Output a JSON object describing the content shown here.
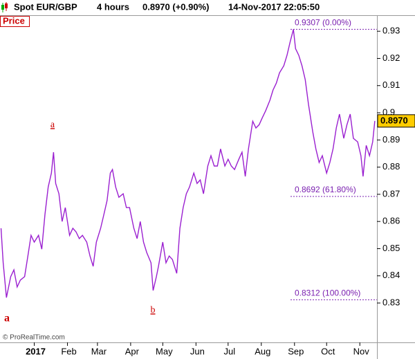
{
  "header": {
    "symbol": "Spot EUR/GBP",
    "period": "4 hours",
    "quote": "0.8970 (+0.90%)",
    "timestamp": "14-Nov-2017 22:05:50"
  },
  "chart_data": {
    "type": "line",
    "panel_label": "Price",
    "color": "#9a1fd0",
    "x": [
      -30,
      -28,
      -25,
      -21,
      -18,
      -15,
      -12,
      -8,
      -5,
      -2,
      1,
      5,
      8,
      11,
      14,
      17,
      19,
      21,
      24,
      27,
      30,
      34,
      37,
      40,
      43,
      46,
      50,
      53,
      56,
      59,
      63,
      66,
      69,
      72,
      74,
      77,
      80,
      84,
      87,
      90,
      94,
      97,
      100,
      103,
      106,
      110,
      112,
      115,
      117,
      121,
      124,
      127,
      130,
      134,
      137,
      140,
      143,
      146,
      150,
      153,
      156,
      159,
      163,
      166,
      169,
      172,
      175,
      179,
      182,
      185,
      188,
      192,
      195,
      198,
      201,
      205,
      208,
      211,
      214,
      217,
      221,
      224,
      227,
      230,
      234,
      237,
      240,
      243,
      245,
      248,
      251,
      254,
      257,
      261,
      264,
      267,
      270,
      274,
      277,
      280,
      283,
      286,
      290,
      293,
      296,
      299,
      303,
      306,
      308,
      311,
      314,
      317,
      319
    ],
    "values": [
      0.8575,
      0.8448,
      0.832,
      0.8397,
      0.8422,
      0.8359,
      0.8384,
      0.8397,
      0.8473,
      0.8549,
      0.8524,
      0.8549,
      0.8498,
      0.8626,
      0.8727,
      0.8778,
      0.8855,
      0.874,
      0.8702,
      0.86,
      0.8651,
      0.8549,
      0.8575,
      0.8562,
      0.8537,
      0.8549,
      0.8524,
      0.8473,
      0.8435,
      0.8524,
      0.8575,
      0.8626,
      0.8677,
      0.8778,
      0.8791,
      0.8727,
      0.8689,
      0.8702,
      0.8651,
      0.8651,
      0.8575,
      0.8537,
      0.86,
      0.8524,
      0.8486,
      0.8448,
      0.8346,
      0.8397,
      0.8435,
      0.8524,
      0.8448,
      0.8473,
      0.846,
      0.8409,
      0.8575,
      0.8651,
      0.8702,
      0.8727,
      0.8778,
      0.874,
      0.8753,
      0.8702,
      0.8804,
      0.8842,
      0.8804,
      0.8804,
      0.8867,
      0.8804,
      0.8829,
      0.8804,
      0.8791,
      0.8829,
      0.8855,
      0.8766,
      0.8867,
      0.8969,
      0.8944,
      0.8956,
      0.8982,
      0.9007,
      0.9046,
      0.9084,
      0.9109,
      0.9147,
      0.9173,
      0.9211,
      0.9262,
      0.9307,
      0.9236,
      0.9211,
      0.9173,
      0.9122,
      0.9033,
      0.8931,
      0.8867,
      0.8817,
      0.8842,
      0.8778,
      0.8817,
      0.8867,
      0.8944,
      0.8995,
      0.8906,
      0.8956,
      0.8995,
      0.8906,
      0.8893,
      0.8842,
      0.8766,
      0.888,
      0.8842,
      0.8893,
      0.897
    ],
    "xlim": [
      -31,
      321
    ],
    "ylim": [
      0.8155,
      0.9359
    ],
    "xticks": [
      {
        "value": 1,
        "label": "2017"
      },
      {
        "value": 32,
        "label": "Feb"
      },
      {
        "value": 60,
        "label": "Mar"
      },
      {
        "value": 91,
        "label": "Apr"
      },
      {
        "value": 121,
        "label": "May"
      },
      {
        "value": 152,
        "label": "Jun"
      },
      {
        "value": 182,
        "label": "Jul"
      },
      {
        "value": 213,
        "label": "Aug"
      },
      {
        "value": 244,
        "label": "Sep"
      },
      {
        "value": 274,
        "label": "Oct"
      },
      {
        "value": 305,
        "label": "Nov"
      }
    ],
    "yticks": [
      0.83,
      0.84,
      0.85,
      0.86,
      0.87,
      0.88,
      0.89,
      0.9,
      0.91,
      0.92,
      0.93
    ],
    "last_price": {
      "value": 0.897,
      "label": "0.8970"
    },
    "levels": [
      {
        "value": 0.9307,
        "label": "0.9307 (0.00%)"
      },
      {
        "value": 0.8692,
        "label": "0.8692 (61.80%)"
      },
      {
        "value": 0.8312,
        "label": "0.8312 (100.00%)"
      }
    ],
    "wave_labels": [
      "a",
      "b",
      "a"
    ],
    "source": "© ProRealTime.com"
  }
}
